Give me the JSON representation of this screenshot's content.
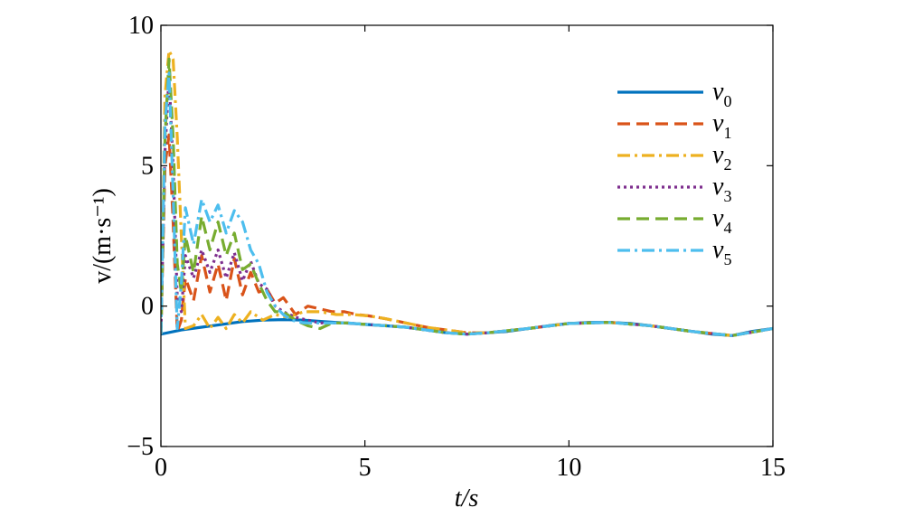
{
  "chart_data": {
    "type": "line",
    "xlabel": "t/s",
    "ylabel": "v/(m·s⁻¹)",
    "xlim": [
      0,
      15
    ],
    "ylim": [
      -5,
      10
    ],
    "xticks": [
      "0",
      "5",
      "10",
      "15"
    ],
    "yticks": [
      "10",
      "5",
      "0",
      "−5"
    ],
    "grid": false,
    "legend_position": "top-right",
    "series": [
      {
        "name": "v0",
        "color": "#0072BD",
        "style": "solid",
        "x": [
          0,
          0.5,
          1,
          1.5,
          2,
          2.5,
          3,
          3.5,
          4,
          4.5,
          5,
          5.5,
          6,
          6.5,
          7,
          7.5,
          8,
          8.5,
          9,
          9.5,
          10,
          10.5,
          11,
          11.5,
          12,
          12.5,
          13,
          13.5,
          14,
          14.5,
          15
        ],
        "y": [
          -1,
          -0.85,
          -0.75,
          -0.65,
          -0.55,
          -0.5,
          -0.48,
          -0.5,
          -0.55,
          -0.6,
          -0.65,
          -0.7,
          -0.75,
          -0.85,
          -0.95,
          -1,
          -0.95,
          -0.9,
          -0.8,
          -0.7,
          -0.62,
          -0.58,
          -0.58,
          -0.62,
          -0.7,
          -0.8,
          -0.9,
          -1,
          -1.05,
          -0.9,
          -0.8
        ]
      },
      {
        "name": "v1",
        "color": "#D95319",
        "style": "dashed",
        "x": [
          0,
          0.1,
          0.2,
          0.3,
          0.4,
          0.5,
          0.6,
          0.8,
          1.0,
          1.2,
          1.4,
          1.6,
          1.8,
          2.0,
          2.2,
          2.4,
          2.6,
          2.8,
          3.0,
          3.3,
          3.6,
          3.9,
          4.2,
          4.5,
          4.8,
          5.1,
          5.5,
          6,
          6.5,
          7,
          7.5,
          8,
          9,
          10,
          11,
          12,
          13,
          14,
          15
        ],
        "y": [
          -1,
          5,
          6.1,
          3,
          -0.9,
          -0.5,
          1.0,
          0.2,
          1.8,
          0.5,
          1.5,
          0.2,
          1.7,
          0.4,
          1.2,
          0.5,
          0.6,
          0.1,
          0.3,
          -0.3,
          0.0,
          -0.1,
          -0.2,
          -0.2,
          -0.3,
          -0.35,
          -0.45,
          -0.6,
          -0.75,
          -0.85,
          -0.95,
          -0.95,
          -0.8,
          -0.62,
          -0.58,
          -0.7,
          -0.9,
          -1.05,
          -0.8
        ]
      },
      {
        "name": "v2",
        "color": "#EDB120",
        "style": "dash-dot",
        "x": [
          0,
          0.1,
          0.2,
          0.3,
          0.4,
          0.5,
          0.6,
          0.8,
          1.0,
          1.2,
          1.4,
          1.6,
          1.8,
          2.0,
          2.2,
          2.5,
          2.8,
          3.1,
          3.5,
          3.9,
          4.3,
          4.7,
          5.1,
          5.5,
          6,
          6.5,
          7,
          7.5,
          8,
          9,
          10,
          11,
          12,
          13,
          14,
          15
        ],
        "y": [
          -1,
          7.5,
          9.1,
          8.8,
          6.0,
          2.5,
          -0.8,
          -0.7,
          -0.3,
          -0.8,
          -0.4,
          -0.8,
          -0.3,
          -0.6,
          -0.2,
          -0.5,
          -0.3,
          -0.4,
          -0.2,
          -0.2,
          -0.3,
          -0.3,
          -0.35,
          -0.45,
          -0.6,
          -0.75,
          -0.85,
          -0.95,
          -0.95,
          -0.8,
          -0.62,
          -0.58,
          -0.7,
          -0.9,
          -1.05,
          -0.8
        ]
      },
      {
        "name": "v3",
        "color": "#7E2F8E",
        "style": "dotted",
        "x": [
          0,
          0.1,
          0.2,
          0.3,
          0.4,
          0.5,
          0.6,
          0.8,
          1.0,
          1.2,
          1.4,
          1.6,
          1.8,
          2.0,
          2.2,
          2.4,
          2.6,
          2.8,
          3.0,
          3.3,
          3.6,
          3.9,
          4.2,
          4.6,
          5,
          5.5,
          6,
          6.5,
          7,
          7.5,
          8,
          9,
          10,
          11,
          12,
          13,
          14,
          15
        ],
        "y": [
          -1,
          5.5,
          8.2,
          5.0,
          0.3,
          -0.2,
          1.8,
          1.0,
          2.0,
          1.2,
          2.0,
          1.0,
          1.9,
          0.9,
          1.6,
          0.8,
          0.6,
          0.0,
          -0.2,
          -0.4,
          -0.5,
          -0.6,
          -0.6,
          -0.6,
          -0.65,
          -0.7,
          -0.75,
          -0.85,
          -0.95,
          -1,
          -0.95,
          -0.8,
          -0.62,
          -0.58,
          -0.7,
          -0.9,
          -1.05,
          -0.8
        ]
      },
      {
        "name": "v4",
        "color": "#77AC30",
        "style": "dashed",
        "x": [
          0,
          0.1,
          0.2,
          0.3,
          0.4,
          0.5,
          0.6,
          0.8,
          1.0,
          1.2,
          1.4,
          1.6,
          1.8,
          2.0,
          2.2,
          2.4,
          2.6,
          2.8,
          3.0,
          3.3,
          3.6,
          3.9,
          4.2,
          4.6,
          5,
          5.5,
          6,
          6.5,
          7,
          7.5,
          8,
          9,
          10,
          11,
          12,
          13,
          14,
          15
        ],
        "y": [
          -1,
          6.0,
          8.8,
          6.0,
          1.5,
          0.5,
          2.5,
          1.2,
          3.2,
          2.0,
          3.0,
          1.8,
          2.6,
          1.3,
          1.5,
          0.8,
          0.2,
          -0.2,
          -0.2,
          -0.5,
          -0.7,
          -0.8,
          -0.6,
          -0.6,
          -0.65,
          -0.7,
          -0.75,
          -0.85,
          -0.95,
          -1,
          -0.95,
          -0.8,
          -0.62,
          -0.58,
          -0.7,
          -0.9,
          -1.05,
          -0.8
        ]
      },
      {
        "name": "v5",
        "color": "#4DBEEE",
        "style": "dash-dot",
        "x": [
          0,
          0.1,
          0.2,
          0.3,
          0.4,
          0.5,
          0.6,
          0.8,
          1.0,
          1.2,
          1.4,
          1.6,
          1.8,
          2.0,
          2.2,
          2.4,
          2.6,
          2.8,
          3.0,
          3.2,
          3.5,
          3.8,
          4.2,
          4.6,
          5,
          5.5,
          6,
          6.5,
          7,
          7.5,
          8,
          9,
          10,
          11,
          12,
          13,
          14,
          15
        ],
        "y": [
          -1,
          6.5,
          8.3,
          4.0,
          -0.8,
          0.8,
          3.5,
          2.2,
          3.8,
          3.0,
          3.6,
          2.6,
          3.4,
          3.0,
          2.0,
          1.5,
          0.5,
          0.0,
          -0.3,
          -0.5,
          -0.6,
          -0.6,
          -0.6,
          -0.6,
          -0.65,
          -0.7,
          -0.75,
          -0.85,
          -0.95,
          -1,
          -0.95,
          -0.8,
          -0.62,
          -0.58,
          -0.7,
          -0.9,
          -1.05,
          -0.8
        ]
      }
    ]
  }
}
